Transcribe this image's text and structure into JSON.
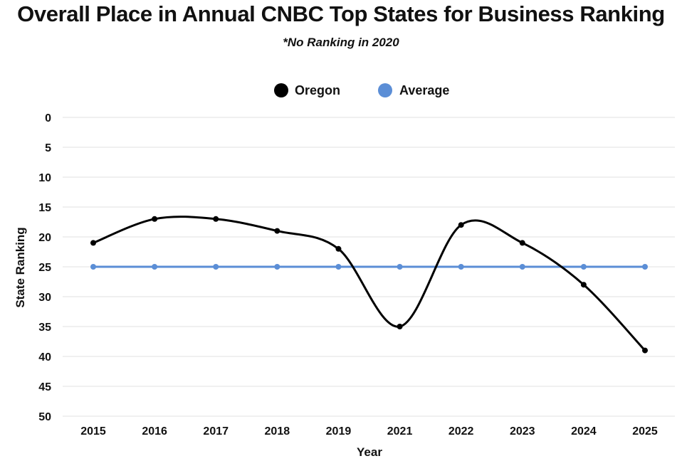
{
  "chart_data": {
    "type": "line",
    "title": "Overall Place in Annual CNBC Top States for Business Ranking",
    "subtitle": "*No Ranking in 2020",
    "xlabel": "Year",
    "ylabel": "State Ranking",
    "categories": [
      "2015",
      "2016",
      "2017",
      "2018",
      "2019",
      "2021",
      "2022",
      "2023",
      "2024",
      "2025"
    ],
    "ylim": [
      0,
      50
    ],
    "y_inverted": true,
    "yticks": [
      0,
      5,
      10,
      15,
      20,
      25,
      30,
      35,
      40,
      45,
      50
    ],
    "grid": true,
    "legend_position": "top-center",
    "series": [
      {
        "name": "Oregon",
        "color": "#000000",
        "values": [
          21,
          17,
          17,
          19,
          22,
          35,
          18,
          21,
          28,
          39
        ]
      },
      {
        "name": "Average",
        "color": "#5b8ed6",
        "values": [
          25,
          25,
          25,
          25,
          25,
          25,
          25,
          25,
          25,
          25
        ]
      }
    ]
  }
}
